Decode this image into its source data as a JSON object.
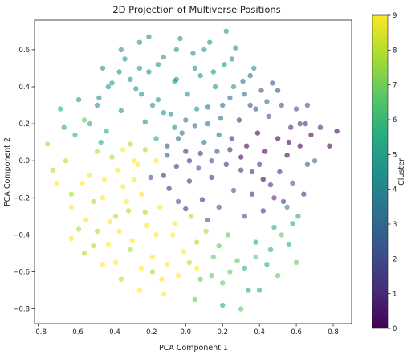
{
  "chart_data": {
    "type": "scatter",
    "title": "2D Projection of Multiverse Positions",
    "xlabel": "PCA Component 1",
    "ylabel": "PCA Component 2",
    "xlim": [
      -0.82,
      0.9
    ],
    "ylim": [
      -0.88,
      0.76
    ],
    "xticks": [
      -0.8,
      -0.6,
      -0.4,
      -0.2,
      0.0,
      0.2,
      0.4,
      0.6,
      0.8
    ],
    "xtick_labels": [
      "−0.8",
      "−0.6",
      "−0.4",
      "−0.2",
      "0.0",
      "0.2",
      "0.4",
      "0.6",
      "0.8"
    ],
    "yticks": [
      -0.8,
      -0.6,
      -0.4,
      -0.2,
      0.0,
      0.2,
      0.4,
      0.6
    ],
    "ytick_labels": [
      "−0.8",
      "−0.6",
      "−0.4",
      "−0.2",
      "0.0",
      "0.2",
      "0.4",
      "0.6"
    ],
    "grid": false,
    "marker_opacity": 0.6,
    "colormap": "viridis",
    "colorbar": {
      "label": "Cluster",
      "range": [
        0,
        9
      ],
      "ticks": [
        0,
        1,
        2,
        3,
        4,
        5,
        6,
        7,
        8,
        9
      ],
      "tick_labels": [
        "0",
        "1",
        "2",
        "3",
        "4",
        "5",
        "6",
        "7",
        "8",
        "9"
      ],
      "colors": [
        "#440154",
        "#472d7b",
        "#3b528b",
        "#2c728e",
        "#21918c",
        "#28ae80",
        "#5ec962",
        "#addc30",
        "#fde725"
      ]
    },
    "points": [
      [
        -0.75,
        0.09,
        8
      ],
      [
        -0.7,
        -0.12,
        9
      ],
      [
        -0.68,
        0.28,
        6
      ],
      [
        -0.65,
        0.0,
        8
      ],
      [
        -0.62,
        -0.25,
        9
      ],
      [
        -0.6,
        0.14,
        6
      ],
      [
        -0.58,
        -0.37,
        8
      ],
      [
        -0.55,
        0.22,
        7
      ],
      [
        -0.52,
        -0.08,
        9
      ],
      [
        -0.5,
        -0.46,
        8
      ],
      [
        -0.48,
        0.05,
        8
      ],
      [
        -0.47,
        0.34,
        5
      ],
      [
        -0.45,
        -0.2,
        9
      ],
      [
        -0.43,
        0.16,
        6
      ],
      [
        -0.41,
        -0.33,
        9
      ],
      [
        -0.4,
        0.42,
        4
      ],
      [
        -0.38,
        -0.55,
        9
      ],
      [
        -0.37,
        -0.05,
        9
      ],
      [
        -0.35,
        0.27,
        5
      ],
      [
        -0.34,
        -0.14,
        9
      ],
      [
        -0.33,
        0.55,
        5
      ],
      [
        -0.31,
        -0.27,
        8
      ],
      [
        -0.3,
        0.09,
        8
      ],
      [
        -0.29,
        -0.43,
        9
      ],
      [
        -0.27,
        0.39,
        4
      ],
      [
        -0.26,
        -0.02,
        9
      ],
      [
        -0.25,
        0.64,
        4
      ],
      [
        -0.24,
        -0.18,
        9
      ],
      [
        -0.22,
        0.21,
        5
      ],
      [
        -0.21,
        -0.35,
        9
      ],
      [
        -0.2,
        0.48,
        4
      ],
      [
        -0.19,
        -0.09,
        2
      ],
      [
        -0.18,
        -0.52,
        9
      ],
      [
        -0.16,
        0.12,
        6
      ],
      [
        -0.15,
        0.33,
        4
      ],
      [
        -0.14,
        -0.25,
        9
      ],
      [
        -0.13,
        -0.64,
        9
      ],
      [
        -0.12,
        0.56,
        4
      ],
      [
        -0.1,
        0.03,
        2
      ],
      [
        -0.09,
        -0.15,
        1
      ],
      [
        -0.08,
        0.25,
        4
      ],
      [
        -0.07,
        -0.4,
        9
      ],
      [
        -0.06,
        0.43,
        4
      ],
      [
        -0.05,
        -0.03,
        1
      ],
      [
        -0.04,
        -0.22,
        2
      ],
      [
        -0.03,
        0.66,
        4
      ],
      [
        -0.02,
        0.15,
        3
      ],
      [
        -0.01,
        -0.49,
        9
      ],
      [
        0.0,
        0.05,
        1
      ],
      [
        0.01,
        0.36,
        4
      ],
      [
        0.02,
        -0.11,
        1
      ],
      [
        0.03,
        -0.3,
        8
      ],
      [
        0.04,
        0.58,
        4
      ],
      [
        0.05,
        0.19,
        3
      ],
      [
        0.06,
        -0.58,
        9
      ],
      [
        0.07,
        -0.04,
        2
      ],
      [
        0.08,
        0.46,
        4
      ],
      [
        0.09,
        -0.21,
        1
      ],
      [
        0.1,
        0.1,
        3
      ],
      [
        0.11,
        -0.38,
        8
      ],
      [
        0.12,
        0.29,
        3
      ],
      [
        0.13,
        0.64,
        4
      ],
      [
        0.14,
        -0.09,
        1
      ],
      [
        0.15,
        -0.52,
        7
      ],
      [
        0.16,
        0.4,
        4
      ],
      [
        0.17,
        0.05,
        2
      ],
      [
        0.18,
        -0.25,
        2
      ],
      [
        0.19,
        0.23,
        3
      ],
      [
        0.2,
        -0.66,
        7
      ],
      [
        0.21,
        0.52,
        4
      ],
      [
        0.22,
        -0.02,
        1
      ],
      [
        0.23,
        -0.4,
        7
      ],
      [
        0.24,
        0.34,
        3
      ],
      [
        0.25,
        0.12,
        1
      ],
      [
        0.26,
        -0.16,
        2
      ],
      [
        0.27,
        0.61,
        5
      ],
      [
        0.28,
        -0.54,
        7
      ],
      [
        0.29,
        0.22,
        1
      ],
      [
        0.3,
        -0.05,
        1
      ],
      [
        0.31,
        0.43,
        3
      ],
      [
        0.32,
        -0.3,
        2
      ],
      [
        0.33,
        0.08,
        0
      ],
      [
        0.34,
        -0.7,
        6
      ],
      [
        0.35,
        0.3,
        2
      ],
      [
        0.36,
        -0.18,
        1
      ],
      [
        0.37,
        0.5,
        4
      ],
      [
        0.38,
        -0.44,
        6
      ],
      [
        0.39,
        0.15,
        0
      ],
      [
        0.4,
        -0.02,
        1
      ],
      [
        0.41,
        0.38,
        2
      ],
      [
        0.42,
        -0.27,
        1
      ],
      [
        0.43,
        0.05,
        0
      ],
      [
        0.44,
        -0.56,
        6
      ],
      [
        0.45,
        0.24,
        2
      ],
      [
        0.46,
        -0.13,
        1
      ],
      [
        0.47,
        0.42,
        2
      ],
      [
        0.48,
        -0.36,
        6
      ],
      [
        0.5,
        0.12,
        0
      ],
      [
        0.51,
        -0.06,
        1
      ],
      [
        0.52,
        0.3,
        2
      ],
      [
        0.53,
        -0.22,
        1
      ],
      [
        0.55,
        0.03,
        0
      ],
      [
        0.56,
        -0.45,
        6
      ],
      [
        0.57,
        0.18,
        1
      ],
      [
        0.58,
        -0.12,
        2
      ],
      [
        0.6,
        0.28,
        2
      ],
      [
        0.61,
        -0.3,
        6
      ],
      [
        0.62,
        0.08,
        0
      ],
      [
        0.64,
        -0.18,
        1
      ],
      [
        0.65,
        0.2,
        1
      ],
      [
        0.66,
        -0.02,
        2
      ],
      [
        0.68,
        0.14,
        0
      ],
      [
        0.7,
        0.0,
        3
      ],
      [
        0.73,
        0.18,
        1
      ],
      [
        0.78,
        0.08,
        0
      ],
      [
        0.82,
        0.16,
        0
      ],
      [
        0.6,
        -0.55,
        7
      ],
      [
        0.5,
        -0.62,
        7
      ],
      [
        0.4,
        -0.7,
        6
      ],
      [
        0.3,
        -0.8,
        7
      ],
      [
        0.2,
        -0.78,
        6
      ],
      [
        0.05,
        -0.75,
        7
      ],
      [
        -0.12,
        -0.72,
        9
      ],
      [
        -0.25,
        -0.7,
        9
      ],
      [
        -0.35,
        -0.64,
        8
      ],
      [
        -0.45,
        -0.56,
        9
      ],
      [
        -0.55,
        -0.5,
        8
      ],
      [
        -0.62,
        -0.42,
        9
      ],
      [
        -0.72,
        -0.05,
        8
      ],
      [
        -0.66,
        0.18,
        6
      ],
      [
        -0.58,
        0.33,
        5
      ],
      [
        -0.45,
        0.5,
        5
      ],
      [
        -0.35,
        0.6,
        5
      ],
      [
        -0.2,
        0.67,
        4
      ],
      [
        -0.05,
        0.6,
        4
      ],
      [
        0.1,
        0.6,
        4
      ],
      [
        0.25,
        0.55,
        4
      ],
      [
        0.35,
        0.46,
        3
      ],
      [
        -0.28,
        -0.1,
        9
      ],
      [
        -0.22,
        -0.28,
        8
      ],
      [
        -0.16,
        -0.4,
        9
      ],
      [
        -0.12,
        -0.08,
        1
      ],
      [
        -0.06,
        -0.34,
        9
      ],
      [
        0.0,
        -0.26,
        1
      ],
      [
        0.06,
        -0.44,
        8
      ],
      [
        0.12,
        -0.32,
        2
      ],
      [
        0.18,
        -0.46,
        7
      ],
      [
        -0.32,
        -0.22,
        9
      ],
      [
        -0.38,
        -0.3,
        8
      ],
      [
        -0.44,
        -0.1,
        9
      ],
      [
        -0.5,
        -0.22,
        8
      ],
      [
        -0.56,
        -0.12,
        9
      ],
      [
        -0.62,
        -0.18,
        8
      ],
      [
        -0.54,
        -0.32,
        9
      ],
      [
        -0.48,
        -0.38,
        8
      ],
      [
        -0.42,
        -0.45,
        9
      ],
      [
        -0.36,
        -0.38,
        9
      ],
      [
        -0.3,
        -0.48,
        8
      ],
      [
        -0.24,
        -0.58,
        9
      ],
      [
        -0.18,
        -0.6,
        8
      ],
      [
        -0.1,
        -0.56,
        9
      ],
      [
        -0.04,
        -0.62,
        9
      ],
      [
        0.02,
        -0.55,
        8
      ],
      [
        0.08,
        -0.64,
        7
      ],
      [
        0.14,
        -0.62,
        7
      ],
      [
        0.24,
        -0.6,
        7
      ],
      [
        0.32,
        -0.58,
        6
      ],
      [
        0.38,
        -0.52,
        7
      ],
      [
        0.46,
        -0.48,
        6
      ],
      [
        0.52,
        -0.4,
        7
      ],
      [
        0.58,
        -0.34,
        6
      ],
      [
        0.55,
        -0.25,
        5
      ],
      [
        0.48,
        -0.2,
        1
      ],
      [
        0.42,
        -0.1,
        0
      ],
      [
        0.36,
        -0.06,
        1
      ],
      [
        0.3,
        0.02,
        0
      ],
      [
        0.24,
        0.06,
        1
      ],
      [
        0.18,
        0.14,
        3
      ],
      [
        0.12,
        0.2,
        3
      ],
      [
        0.06,
        0.28,
        4
      ],
      [
        0.0,
        0.22,
        3
      ],
      [
        -0.06,
        0.18,
        4
      ],
      [
        -0.12,
        0.26,
        4
      ],
      [
        -0.18,
        0.3,
        5
      ],
      [
        -0.24,
        0.36,
        5
      ],
      [
        -0.3,
        0.44,
        5
      ],
      [
        -0.36,
        0.48,
        5
      ],
      [
        -0.42,
        0.4,
        4
      ],
      [
        -0.48,
        0.3,
        5
      ],
      [
        -0.52,
        0.2,
        6
      ],
      [
        -0.46,
        0.1,
        6
      ],
      [
        -0.4,
        0.02,
        8
      ],
      [
        -0.34,
        0.06,
        9
      ],
      [
        -0.28,
        0.0,
        9
      ],
      [
        -0.22,
        0.06,
        8
      ],
      [
        -0.16,
        0.0,
        9
      ],
      [
        -0.1,
        0.08,
        2
      ],
      [
        -0.04,
        0.12,
        3
      ],
      [
        0.02,
        0.0,
        1
      ],
      [
        0.08,
        0.04,
        1
      ],
      [
        0.14,
        0.0,
        2
      ],
      [
        0.2,
        0.3,
        3
      ],
      [
        0.26,
        0.4,
        4
      ],
      [
        0.32,
        0.36,
        3
      ],
      [
        0.38,
        0.28,
        2
      ],
      [
        0.44,
        0.32,
        3
      ],
      [
        0.5,
        0.38,
        2
      ],
      [
        0.56,
        0.1,
        0
      ],
      [
        0.62,
        0.2,
        1
      ],
      [
        0.66,
        0.3,
        2
      ],
      [
        0.15,
        0.48,
        4
      ],
      [
        0.05,
        0.5,
        4
      ],
      [
        -0.05,
        0.44,
        4
      ],
      [
        -0.15,
        0.52,
        5
      ],
      [
        -0.25,
        0.5,
        4
      ],
      [
        0.22,
        0.7,
        4
      ]
    ]
  }
}
